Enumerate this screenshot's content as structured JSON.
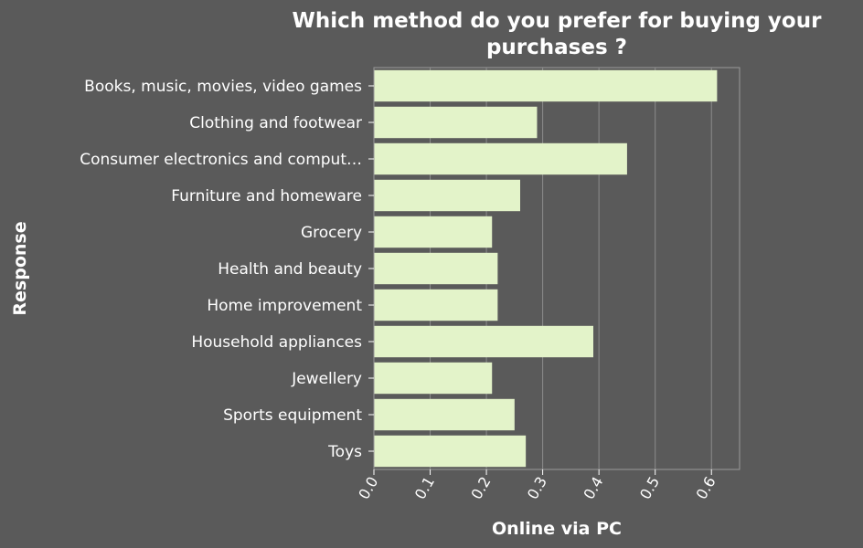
{
  "chart_data": {
    "type": "bar",
    "orientation": "horizontal",
    "title_lines": [
      "Which method do you prefer for buying your",
      "purchases ?"
    ],
    "xlabel": "Online via PC",
    "ylabel": "Response",
    "xlim": [
      0,
      0.65
    ],
    "xticks": [
      "0.0",
      "0.1",
      "0.2",
      "0.3",
      "0.4",
      "0.5",
      "0.6"
    ],
    "grid": true,
    "categories": [
      "Books, music, movies, video games",
      "Clothing and footwear",
      "Consumer electronics and comput…",
      "Furniture and homeware",
      "Grocery",
      "Health and beauty",
      "Home improvement",
      "Household appliances",
      "Jewellery",
      "Sports equipment",
      "Toys"
    ],
    "values": [
      0.61,
      0.29,
      0.45,
      0.26,
      0.21,
      0.22,
      0.22,
      0.39,
      0.21,
      0.25,
      0.27
    ],
    "colors": {
      "background": "#5a5a5a",
      "bar": "#e3f3c9",
      "text": "#ffffff"
    }
  }
}
